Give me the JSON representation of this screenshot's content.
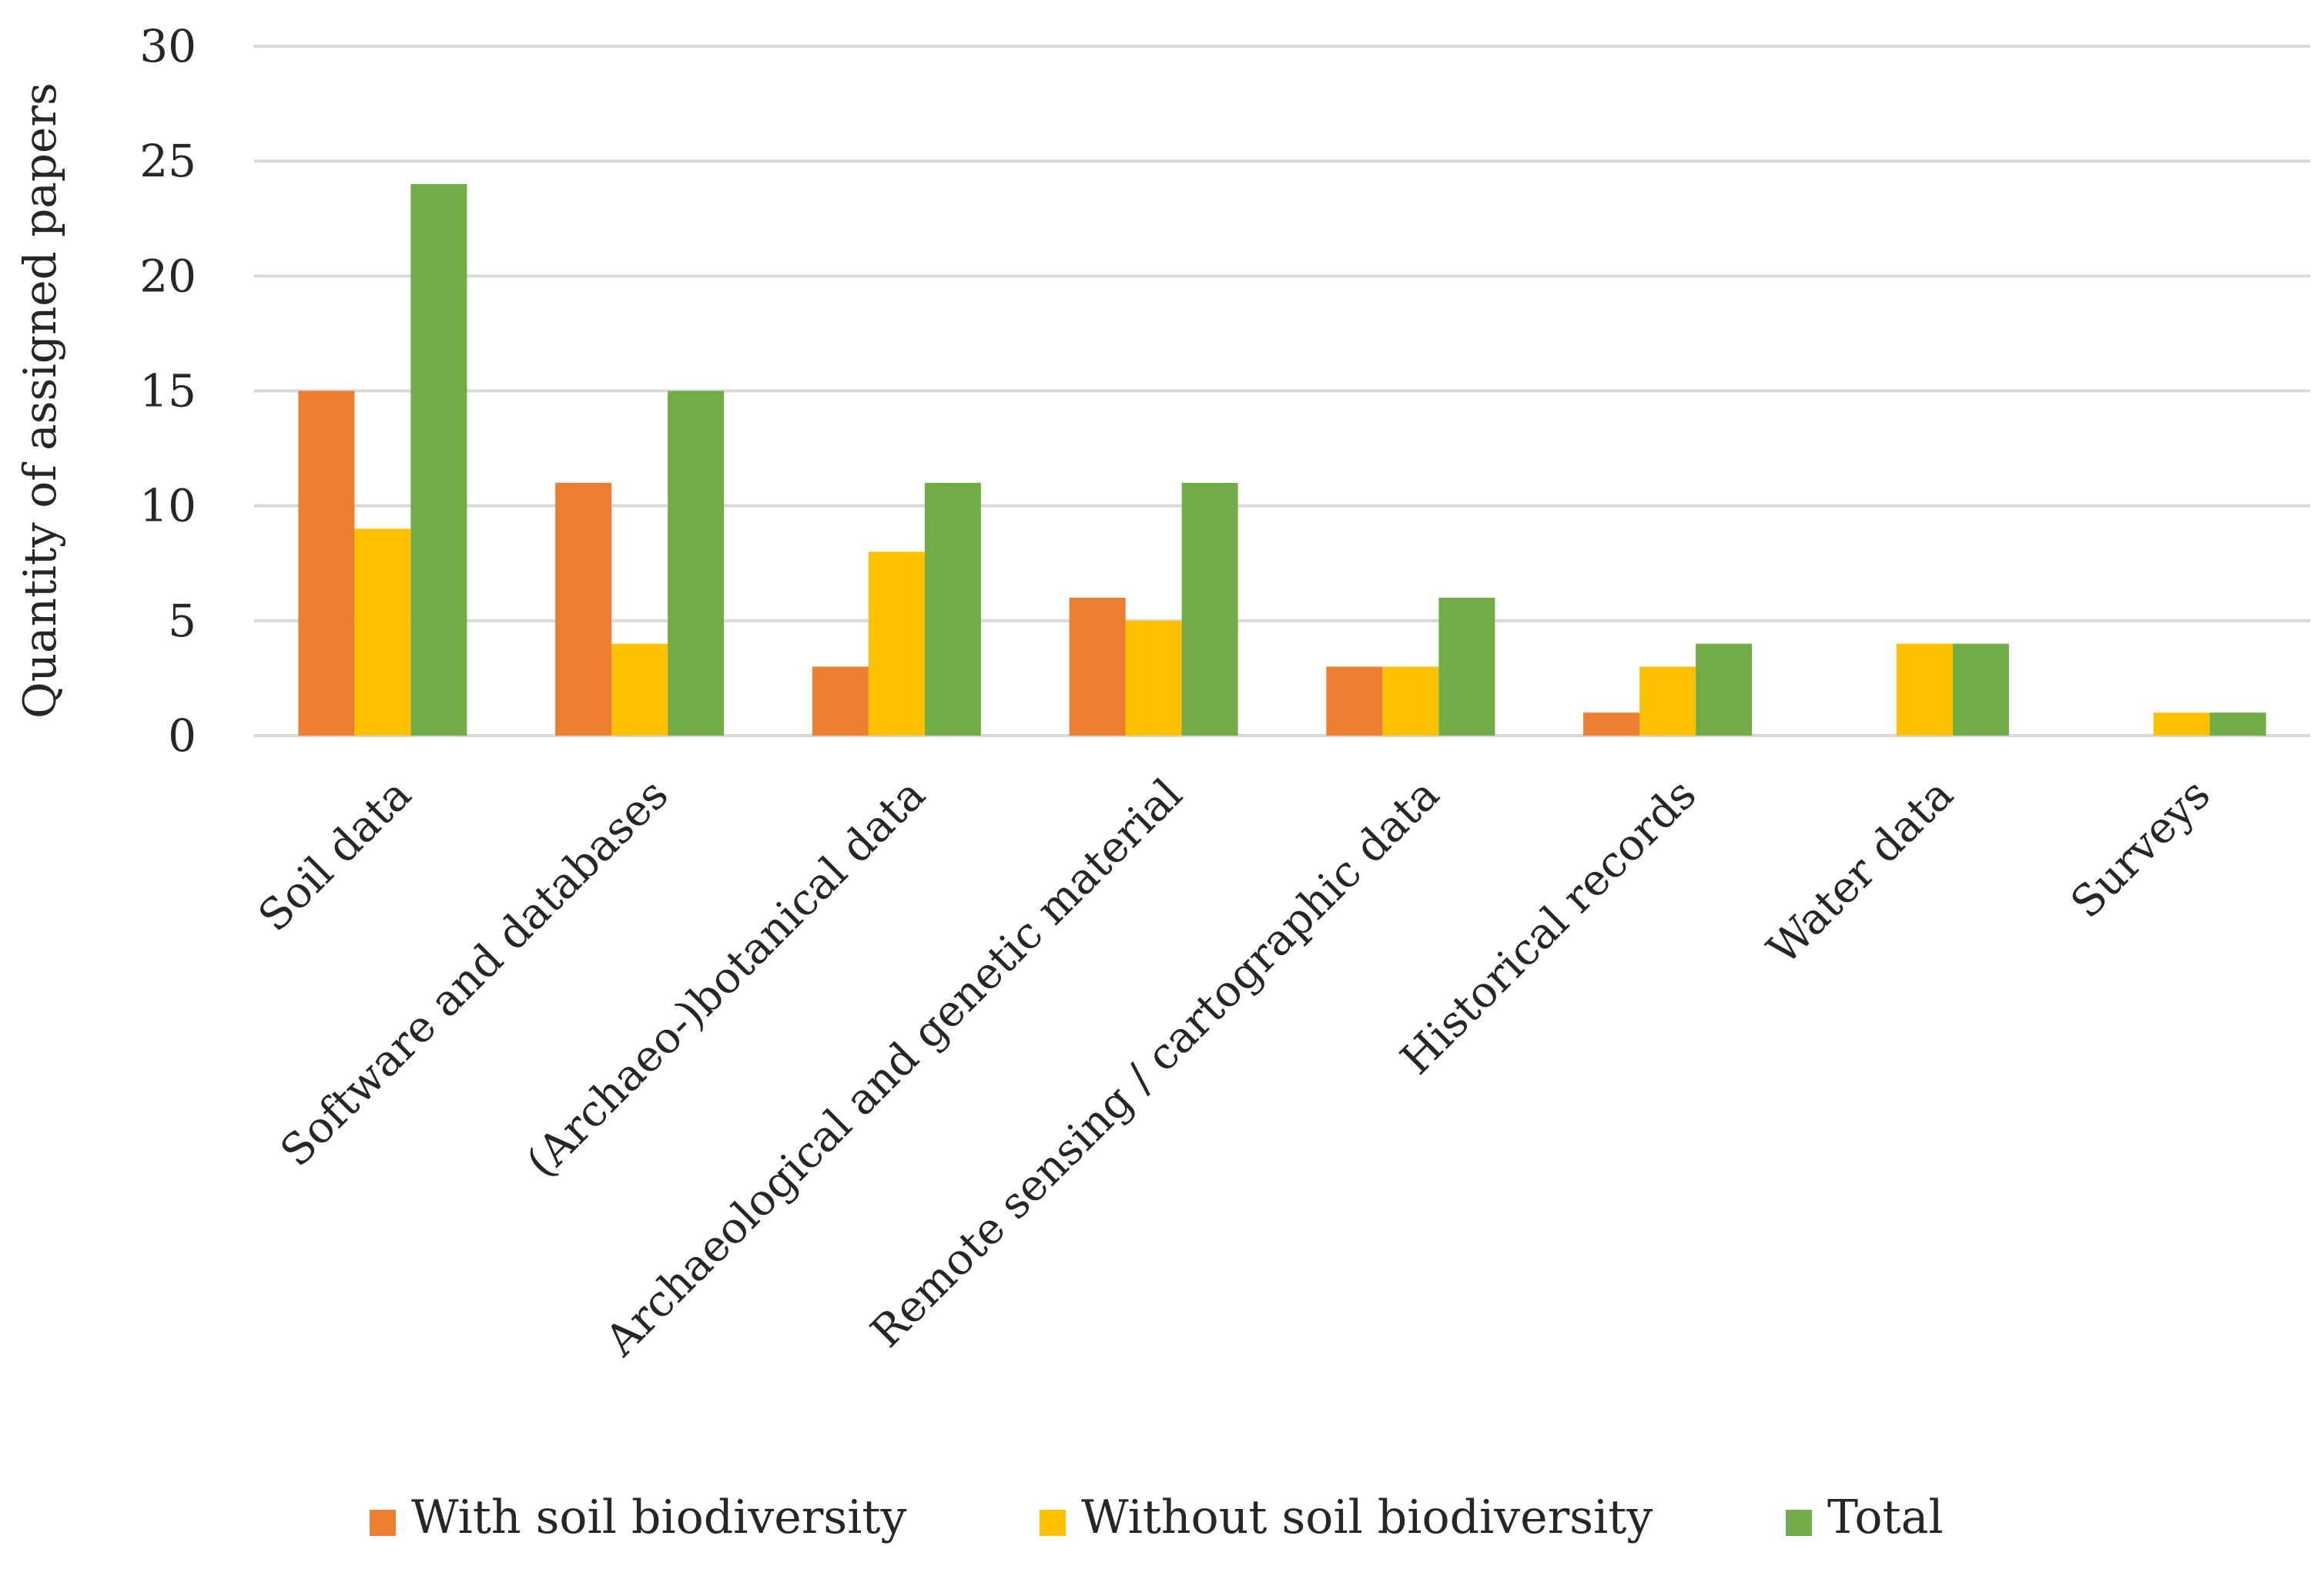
{
  "chart_data": {
    "type": "bar",
    "title": "",
    "xlabel": "",
    "ylabel": "Quantity of assigned papers",
    "ylim": [
      0,
      30
    ],
    "yticks": [
      0,
      5,
      10,
      15,
      20,
      25,
      30
    ],
    "grid": true,
    "legend_position": "bottom",
    "categories": [
      "Soil data",
      "Software and databases",
      "(Archaeo-)botanical data",
      "Archaeological and genetic material",
      "Remote sensing / cartographic data",
      "Historical records",
      "Water data",
      "Surveys"
    ],
    "series": [
      {
        "name": "With soil biodiversity",
        "color": "#ed7d31",
        "values": [
          15,
          11,
          3,
          6,
          3,
          1,
          0,
          0
        ]
      },
      {
        "name": "Without soil biodiversity",
        "color": "#ffc000",
        "values": [
          9,
          4,
          8,
          5,
          3,
          3,
          4,
          1
        ]
      },
      {
        "name": "Total",
        "color": "#70ad47",
        "values": [
          24,
          15,
          11,
          11,
          6,
          4,
          4,
          1
        ]
      }
    ]
  }
}
